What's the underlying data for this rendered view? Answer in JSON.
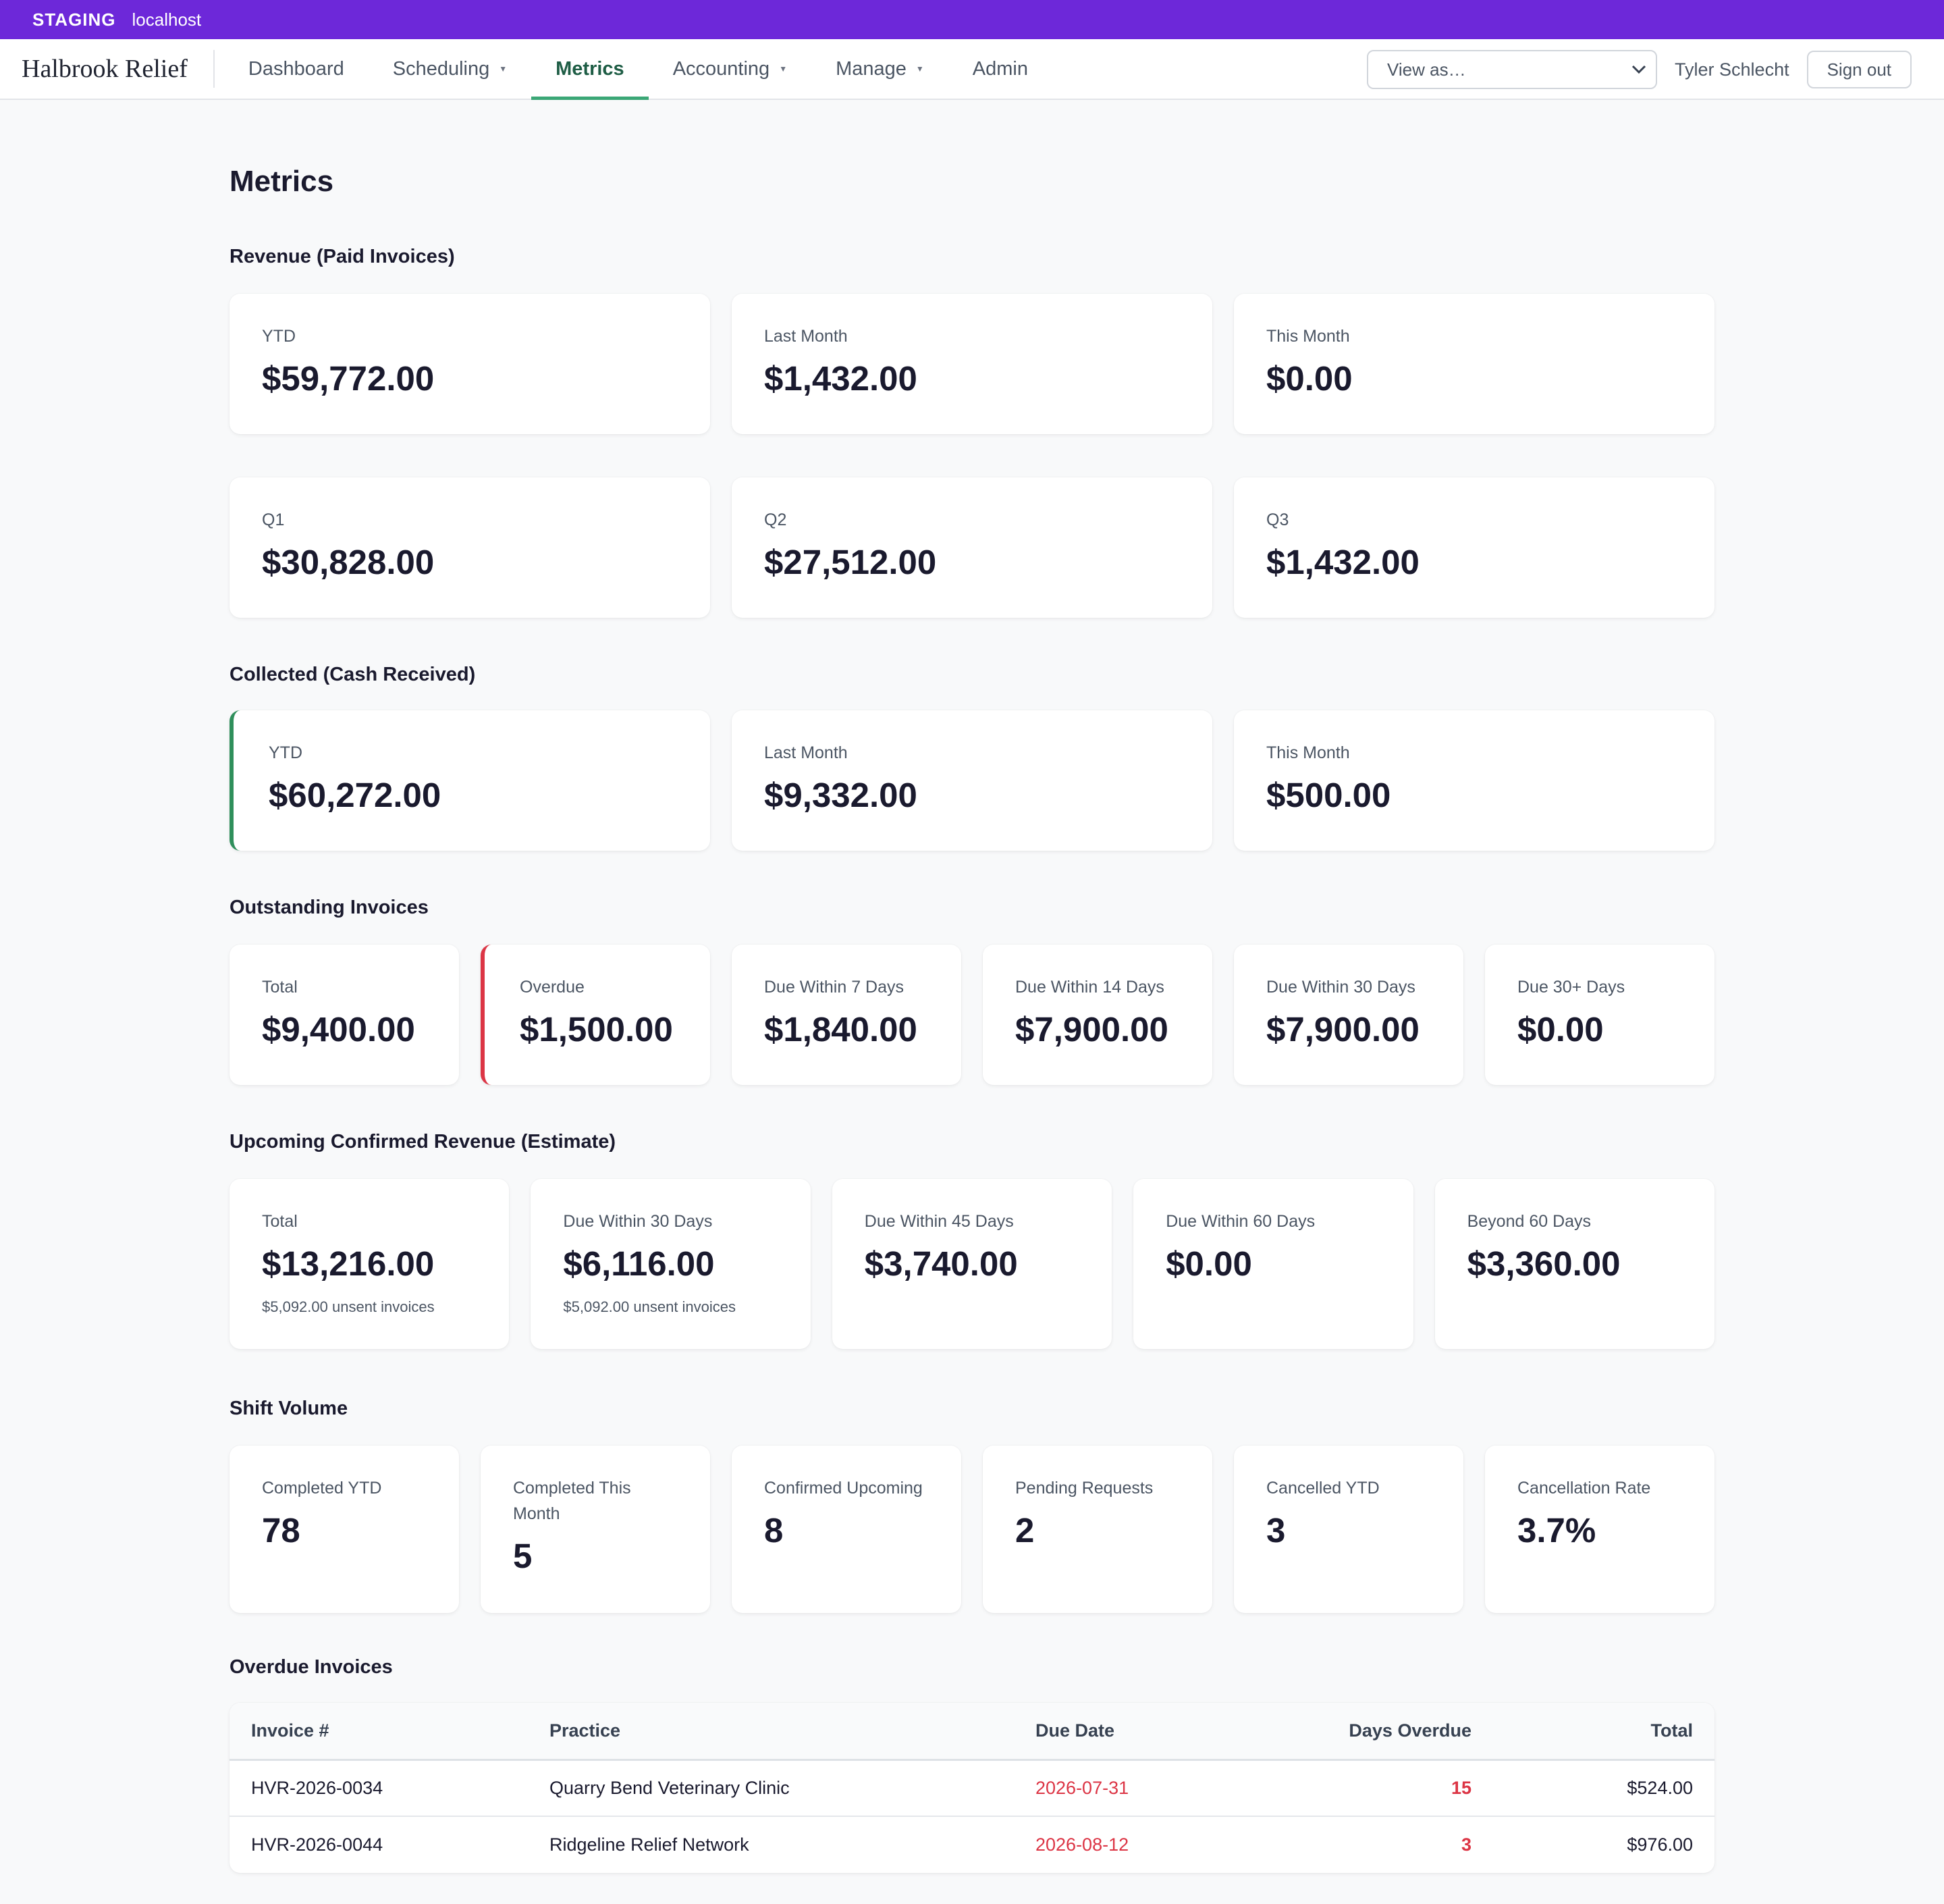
{
  "staging": {
    "tag": "STAGING",
    "host": "localhost"
  },
  "nav": {
    "brand": "Halbrook Relief",
    "items": [
      {
        "label": "Dashboard",
        "dropdown": false,
        "active": false
      },
      {
        "label": "Scheduling",
        "dropdown": true,
        "active": false
      },
      {
        "label": "Metrics",
        "dropdown": false,
        "active": true
      },
      {
        "label": "Accounting",
        "dropdown": true,
        "active": false
      },
      {
        "label": "Manage",
        "dropdown": true,
        "active": false
      },
      {
        "label": "Admin",
        "dropdown": false,
        "active": false
      }
    ],
    "view_as": "View as…",
    "user": "Tyler Schlecht",
    "sign_out": "Sign out"
  },
  "page": {
    "title": "Metrics"
  },
  "revenue": {
    "title": "Revenue (Paid Invoices)",
    "row1": [
      {
        "label": "YTD",
        "value": "$59,772.00"
      },
      {
        "label": "Last Month",
        "value": "$1,432.00"
      },
      {
        "label": "This Month",
        "value": "$0.00"
      }
    ],
    "row2": [
      {
        "label": "Q1",
        "value": "$30,828.00"
      },
      {
        "label": "Q2",
        "value": "$27,512.00"
      },
      {
        "label": "Q3",
        "value": "$1,432.00"
      }
    ]
  },
  "collected": {
    "title": "Collected (Cash Received)",
    "cards": [
      {
        "label": "YTD",
        "value": "$60,272.00"
      },
      {
        "label": "Last Month",
        "value": "$9,332.00"
      },
      {
        "label": "This Month",
        "value": "$500.00"
      }
    ]
  },
  "outstanding": {
    "title": "Outstanding Invoices",
    "cards": [
      {
        "label": "Total",
        "value": "$9,400.00"
      },
      {
        "label": "Overdue",
        "value": "$1,500.00"
      },
      {
        "label": "Due Within 7 Days",
        "value": "$1,840.00"
      },
      {
        "label": "Due Within 14 Days",
        "value": "$7,900.00"
      },
      {
        "label": "Due Within 30 Days",
        "value": "$7,900.00"
      },
      {
        "label": "Due 30+ Days",
        "value": "$0.00"
      }
    ]
  },
  "upcoming": {
    "title": "Upcoming Confirmed Revenue (Estimate)",
    "cards": [
      {
        "label": "Total",
        "value": "$13,216.00",
        "sub": "$5,092.00 unsent invoices"
      },
      {
        "label": "Due Within 30 Days",
        "value": "$6,116.00",
        "sub": "$5,092.00 unsent invoices"
      },
      {
        "label": "Due Within 45 Days",
        "value": "$3,740.00"
      },
      {
        "label": "Due Within 60 Days",
        "value": "$0.00"
      },
      {
        "label": "Beyond 60 Days",
        "value": "$3,360.00"
      }
    ]
  },
  "shifts": {
    "title": "Shift Volume",
    "cards": [
      {
        "label": "Completed YTD",
        "value": "78"
      },
      {
        "label": "Completed This Month",
        "value": "5"
      },
      {
        "label": "Confirmed Upcoming",
        "value": "8"
      },
      {
        "label": "Pending Requests",
        "value": "2"
      },
      {
        "label": "Cancelled YTD",
        "value": "3"
      },
      {
        "label": "Cancellation Rate",
        "value": "3.7%"
      }
    ]
  },
  "overdue": {
    "title": "Overdue Invoices",
    "columns": {
      "invoice": "Invoice #",
      "practice": "Practice",
      "due": "Due Date",
      "days": "Days Overdue",
      "total": "Total"
    },
    "rows": [
      {
        "invoice": "HVR-2026-0034",
        "practice": "Quarry Bend Veterinary Clinic",
        "due": "2026-07-31",
        "days": "15",
        "total": "$524.00"
      },
      {
        "invoice": "HVR-2026-0044",
        "practice": "Ridgeline Relief Network",
        "due": "2026-08-12",
        "days": "3",
        "total": "$976.00"
      }
    ]
  }
}
